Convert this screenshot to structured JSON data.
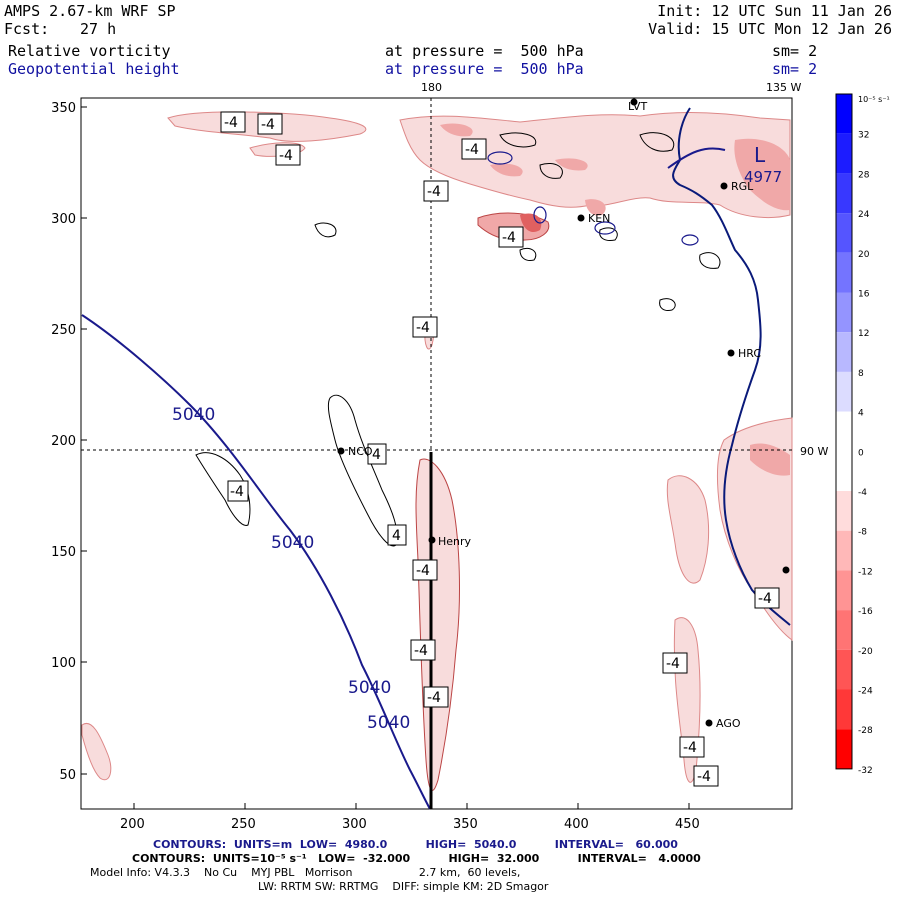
{
  "header": {
    "model": "AMPS 2.67-km WRF SP",
    "fcst_label": "Fcst:",
    "fcst_value": "27 h",
    "init": "Init: 12 UTC Sun 11 Jan 26",
    "valid": "Valid: 15 UTC Mon 12 Jan 26",
    "field1": "Relative vorticity",
    "field2": "Geopotential height",
    "pressure1": "at pressure =  500 hPa",
    "pressure2": "at pressure =  500 hPa",
    "sm1": "sm= 2",
    "sm2": "sm= 2"
  },
  "map": {
    "top_label_180": "180",
    "top_label_135w": "135 W",
    "right_label_90w": "90 W",
    "x_ticks": [
      "200",
      "250",
      "300",
      "350",
      "400",
      "450"
    ],
    "y_ticks": [
      "50",
      "100",
      "150",
      "200",
      "250",
      "300",
      "350"
    ],
    "height_labels": [
      "5040",
      "5040",
      "5040",
      "5040"
    ],
    "low_label": "L",
    "low_value": "4977",
    "vort_labels": [
      "-4",
      "-4",
      "-4",
      "-4",
      "-4",
      "-4",
      "-4",
      "-4",
      "4",
      "4",
      "-4",
      "-4",
      "-4",
      "-4",
      "-4",
      "-4",
      "-4",
      "-4"
    ],
    "stations": [
      {
        "name": "NCO"
      },
      {
        "name": "Henry"
      },
      {
        "name": "HRC"
      },
      {
        "name": "RGL"
      },
      {
        "name": "KEN"
      },
      {
        "name": "LVT"
      },
      {
        "name": "AGO"
      }
    ],
    "colors": {
      "height_contour": "#1a1a8c",
      "vort_pos_line": "#000000",
      "vort_neg_fill_light": "#f8dcdc",
      "vort_neg_fill_mid": "#f0a8a8",
      "vort_neg_fill_dark": "#e06060",
      "coast": "#0a1a7a"
    }
  },
  "colorbar": {
    "unit": "10⁻⁵ s⁻¹",
    "labels": [
      "32",
      "28",
      "24",
      "20",
      "16",
      "12",
      "8",
      "4",
      "0",
      "-4",
      "-8",
      "-12",
      "-16",
      "-20",
      "-24",
      "-28",
      "-32"
    ],
    "colors": [
      "#0000ff",
      "#1c1cff",
      "#3838ff",
      "#5555ff",
      "#7474ff",
      "#9494ff",
      "#b8b8ff",
      "#dcdcff",
      "#ffffff",
      "#ffffff",
      "#ffdcdc",
      "#ffb8b8",
      "#ff9494",
      "#ff7474",
      "#ff5555",
      "#ff3838",
      "#ff0000"
    ]
  },
  "footer": {
    "line1": "CONTOURS:  UNITS=m  LOW=  4980.0          HIGH=  5040.0          INTERVAL=   60.000",
    "line2": "CONTOURS:  UNITS=10⁻⁵ s⁻¹   LOW=  -32.000          HIGH=  32.000          INTERVAL=   4.0000",
    "line3": "Model Info: V4.3.3    No Cu    MYJ PBL   Morrison                   2.7 km,  60 levels,",
    "line4": "LW: RRTM SW: RRTMG    DIFF: simple KM: 2D Smagor"
  }
}
